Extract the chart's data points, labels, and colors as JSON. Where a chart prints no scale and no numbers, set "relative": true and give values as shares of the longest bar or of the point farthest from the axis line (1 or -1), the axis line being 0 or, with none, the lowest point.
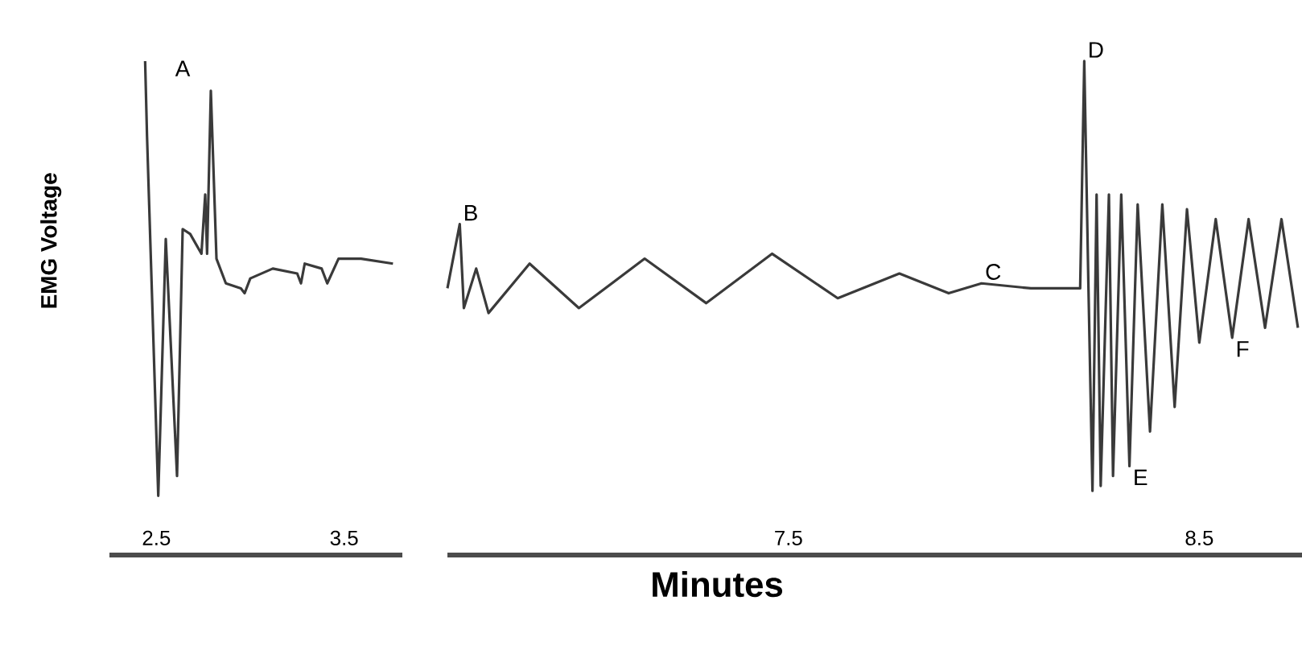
{
  "chart_data": [
    {
      "type": "line",
      "relative": true,
      "ylabel": "EMG Voltage",
      "tick_labels": "x",
      "color": "#3a3a3a",
      "x": [
        2.44,
        2.45,
        2.51,
        2.55,
        2.61,
        2.64,
        2.68,
        2.74,
        2.76,
        2.77,
        2.79,
        2.82,
        2.87,
        2.95,
        2.97,
        3.0,
        3.12,
        3.25,
        3.27,
        3.29,
        3.38,
        3.41,
        3.47,
        3.59,
        3.76
      ],
      "values": [
        1.0,
        0.85,
        0.12,
        0.64,
        0.16,
        0.66,
        0.65,
        0.61,
        0.73,
        0.61,
        0.94,
        0.6,
        0.55,
        0.54,
        0.53,
        0.56,
        0.58,
        0.57,
        0.55,
        0.59,
        0.58,
        0.55,
        0.6,
        0.6,
        0.59
      ],
      "xlim": [
        2.25,
        3.81
      ],
      "xticks": [
        2.5,
        3.5
      ],
      "annotations": [
        "A"
      ]
    },
    {
      "type": "line",
      "relative": true,
      "xlabel": "Minutes",
      "tick_labels": "x",
      "color": "#3a3a3a",
      "x": [
        6.67,
        6.7,
        6.71,
        6.74,
        6.77,
        6.87,
        6.99,
        7.15,
        7.3,
        7.46,
        7.62,
        7.77,
        7.89,
        7.97,
        8.09,
        8.19,
        8.21,
        8.22,
        8.23,
        8.24,
        8.25,
        8.26,
        8.28,
        8.29,
        8.31,
        8.33,
        8.35,
        8.38,
        8.41,
        8.44,
        8.47,
        8.5,
        8.54,
        8.58,
        8.62,
        8.66,
        8.7,
        8.74
      ],
      "values": [
        0.54,
        0.67,
        0.5,
        0.58,
        0.49,
        0.59,
        0.5,
        0.6,
        0.51,
        0.61,
        0.52,
        0.57,
        0.53,
        0.55,
        0.54,
        0.54,
        0.54,
        1.0,
        0.55,
        0.13,
        0.73,
        0.14,
        0.73,
        0.16,
        0.73,
        0.18,
        0.71,
        0.25,
        0.71,
        0.3,
        0.7,
        0.43,
        0.68,
        0.44,
        0.68,
        0.46,
        0.68,
        0.46
      ],
      "xlim": [
        6.67,
        8.75
      ],
      "xticks": [
        7.5,
        8.5
      ],
      "annotations": [
        {
          "text": "B",
          "x": 6.7,
          "y": 0.67
        },
        {
          "text": "C",
          "x": 7.97,
          "y": 0.55
        },
        {
          "text": "D",
          "x": 8.22,
          "y": 1.0
        },
        {
          "text": "E",
          "x": 8.33,
          "y": 0.18
        },
        {
          "text": "F",
          "x": 8.58,
          "y": 0.44
        }
      ]
    }
  ]
}
